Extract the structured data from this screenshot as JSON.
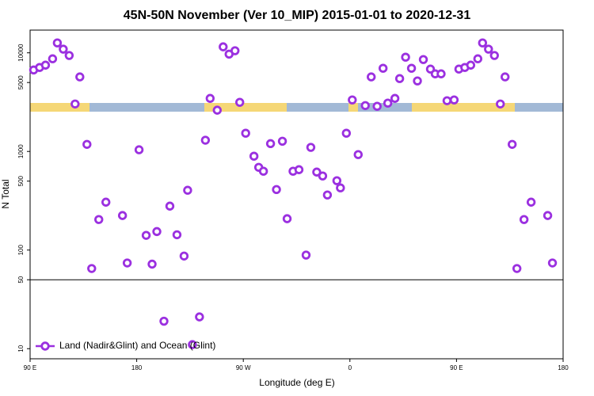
{
  "chart_data": {
    "type": "scatter",
    "title": "45N-50N November (Ver 10_MIP)   2015-01-01 to 2020-12-31",
    "x_label": "Longitude (deg E)",
    "y_label": "N Total",
    "log_y": true,
    "legend": "lower left",
    "hline": 50,
    "xlim": [
      90,
      540
    ],
    "xticks": [
      {
        "value": 90,
        "label": "90 E"
      },
      180,
      {
        "value": 270,
        "label": "90 W"
      },
      {
        "value": 360,
        "label": "0"
      },
      {
        "value": 450,
        "label": "90 E"
      },
      {
        "value": 540,
        "label": "180"
      }
    ],
    "ylim": [
      7.9,
      17000
    ],
    "yticks": [
      10,
      50,
      100,
      500,
      1000,
      5000,
      10000
    ],
    "x": [
      93,
      98,
      103,
      109,
      113,
      118,
      123,
      128,
      132,
      138,
      142,
      148,
      154,
      168,
      172,
      182,
      188,
      193,
      197,
      203,
      208,
      214,
      220,
      223,
      227,
      233,
      238,
      242,
      248,
      253,
      258,
      263,
      267,
      272,
      279,
      283,
      287,
      293,
      298,
      303,
      307,
      312,
      317,
      323,
      327,
      332,
      337,
      341,
      349,
      352,
      357,
      362,
      367,
      373,
      378,
      383,
      388,
      392,
      398,
      402,
      407,
      412,
      417,
      422,
      428,
      432,
      437,
      442,
      448,
      452,
      457,
      462,
      468,
      472,
      477,
      482,
      487,
      491,
      497,
      501,
      507,
      513,
      527,
      531
    ],
    "series": [
      {
        "name": "Land (Nadir&Glint) and Ocean (Glint)",
        "color": "#9b30e0",
        "values": [
          6700,
          7100,
          7500,
          8700,
          12600,
          10900,
          9400,
          3030,
          5700,
          1180,
          65,
          204,
          306,
          224,
          74,
          1040,
          141,
          72,
          154,
          19,
          279,
          143,
          87,
          404,
          11,
          21,
          1300,
          3450,
          2620,
          11500,
          9700,
          10500,
          3150,
          1530,
          895,
          690,
          630,
          1200,
          411,
          1270,
          208,
          630,
          653,
          89,
          1100,
          618,
          564,
          362,
          505,
          427,
          1530,
          3330,
          929,
          2920,
          5700,
          2870,
          6970,
          3090,
          3450,
          5480,
          9030,
          6970,
          5190,
          8550,
          6840,
          6120,
          6120,
          3270,
          3330,
          6840,
          7100,
          7500,
          8700,
          12600,
          10900,
          9400,
          3030,
          5700,
          1180,
          65,
          204,
          306,
          224,
          74
        ]
      }
    ]
  }
}
